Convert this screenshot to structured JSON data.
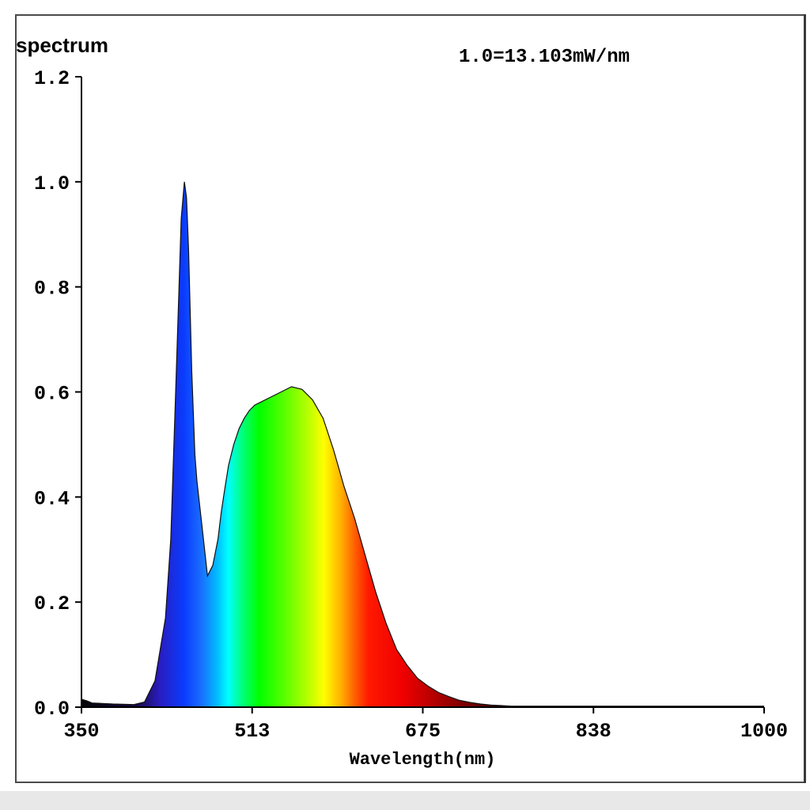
{
  "chart_data": {
    "type": "area",
    "title": "",
    "ylabel": "spectrum",
    "xlabel": "Wavelength(nm)",
    "annotation": "1.0=13.103mW/nm",
    "xlim": [
      350,
      1000
    ],
    "ylim": [
      0,
      1.2
    ],
    "x_ticks": [
      "350",
      "513",
      "675",
      "838",
      "1000"
    ],
    "y_ticks": [
      "0.0",
      "0.2",
      "0.4",
      "0.6",
      "0.8",
      "1.0",
      "1.2"
    ],
    "grid": false,
    "fill": "wavelength-colored spectrum",
    "x": [
      350,
      355,
      360,
      380,
      400,
      410,
      420,
      430,
      435,
      440,
      445,
      448,
      450,
      452,
      455,
      458,
      460,
      465,
      470,
      475,
      480,
      483,
      486,
      490,
      495,
      500,
      505,
      510,
      515,
      520,
      530,
      540,
      550,
      560,
      570,
      580,
      585,
      590,
      595,
      600,
      610,
      620,
      630,
      640,
      650,
      660,
      670,
      680,
      690,
      700,
      710,
      720,
      730,
      740,
      750,
      760,
      780,
      800,
      850,
      900,
      950,
      1000
    ],
    "values": [
      0.015,
      0.012,
      0.008,
      0.006,
      0.005,
      0.01,
      0.05,
      0.17,
      0.32,
      0.62,
      0.93,
      1.0,
      0.97,
      0.87,
      0.64,
      0.48,
      0.43,
      0.34,
      0.25,
      0.27,
      0.32,
      0.37,
      0.41,
      0.46,
      0.5,
      0.53,
      0.55,
      0.565,
      0.575,
      0.58,
      0.59,
      0.6,
      0.61,
      0.605,
      0.585,
      0.55,
      0.52,
      0.49,
      0.455,
      0.42,
      0.36,
      0.29,
      0.22,
      0.16,
      0.11,
      0.08,
      0.055,
      0.04,
      0.028,
      0.02,
      0.013,
      0.009,
      0.006,
      0.004,
      0.003,
      0.002,
      0.002,
      0.002,
      0.002,
      0.002,
      0.002,
      0.002
    ]
  }
}
